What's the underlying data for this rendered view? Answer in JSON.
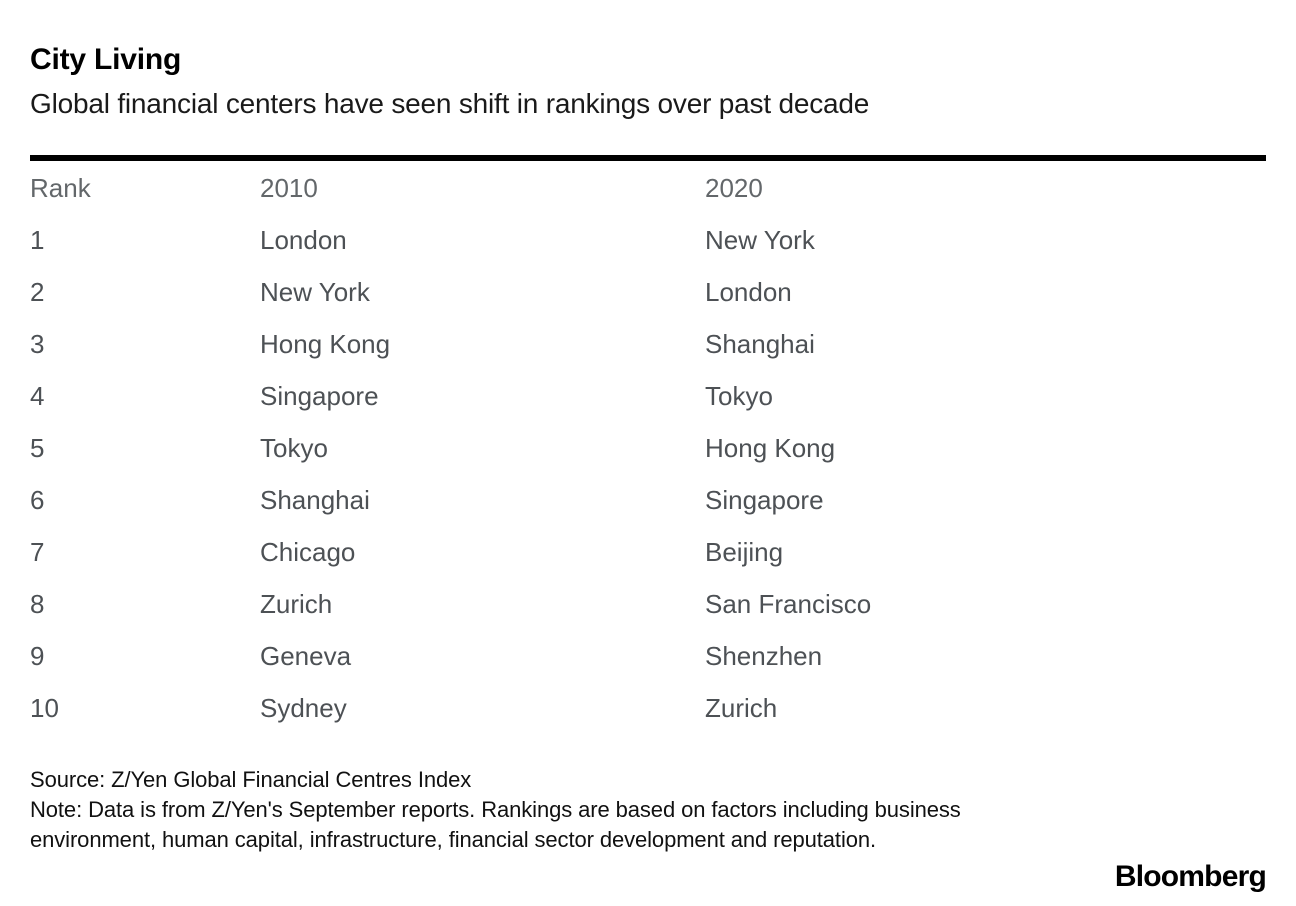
{
  "header": {
    "title": "City Living",
    "subtitle": "Global financial centers have seen shift in rankings over past decade"
  },
  "chart_data": {
    "type": "table",
    "title": "City Living",
    "subtitle": "Global financial centers have seen shift in rankings over past decade",
    "columns": [
      "Rank",
      "2010",
      "2020"
    ],
    "rows": [
      {
        "rank": "1",
        "y2010": "London",
        "y2020": "New York"
      },
      {
        "rank": "2",
        "y2010": "New York",
        "y2020": "London"
      },
      {
        "rank": "3",
        "y2010": "Hong Kong",
        "y2020": "Shanghai"
      },
      {
        "rank": "4",
        "y2010": "Singapore",
        "y2020": "Tokyo"
      },
      {
        "rank": "5",
        "y2010": "Tokyo",
        "y2020": "Hong Kong"
      },
      {
        "rank": "6",
        "y2010": "Shanghai",
        "y2020": "Singapore"
      },
      {
        "rank": "7",
        "y2010": "Chicago",
        "y2020": "Beijing"
      },
      {
        "rank": "8",
        "y2010": "Zurich",
        "y2020": "San Francisco"
      },
      {
        "rank": "9",
        "y2010": "Geneva",
        "y2020": "Shenzhen"
      },
      {
        "rank": "10",
        "y2010": "Sydney",
        "y2020": "Zurich"
      }
    ]
  },
  "footer": {
    "source": "Source: Z/Yen Global Financial Centres Index",
    "note": "Note: Data is from Z/Yen's September reports. Rankings are based on factors including business environment, human capital, infrastructure, financial sector development and reputation.",
    "brand": "Bloomberg"
  },
  "colors": {
    "title": "#000000",
    "subtitle": "#1a1a1a",
    "divider": "#000000",
    "table_header": "#63676a",
    "table_text": "#4d5155",
    "footer_text": "#111111",
    "background": "#ffffff"
  }
}
